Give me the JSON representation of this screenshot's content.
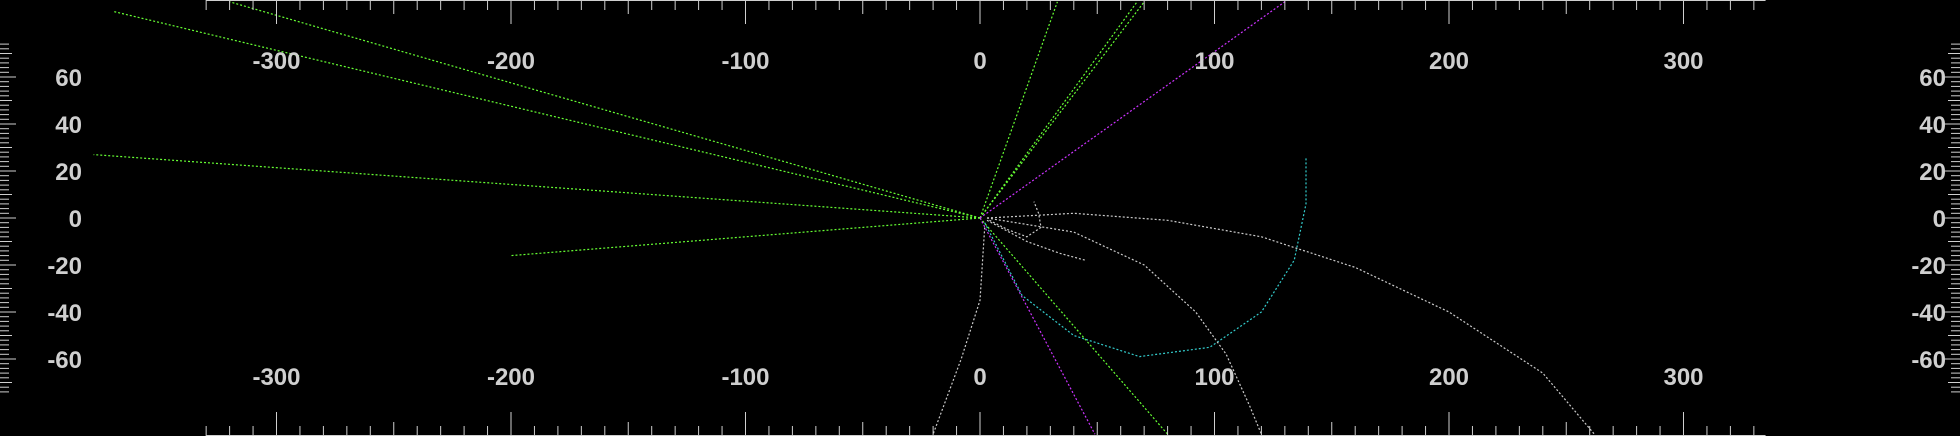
{
  "display": {
    "background_color": "#000000",
    "scale_color": "#cfcfcf"
  },
  "x_axis": {
    "tick_labels": [
      "-300",
      "-200",
      "-100",
      "0",
      "100",
      "200",
      "300"
    ],
    "tick_values": [
      -300,
      -200,
      -100,
      0,
      100,
      200,
      300
    ],
    "minor_step": 10,
    "range": [
      -330,
      335
    ]
  },
  "y_axis": {
    "tick_labels": [
      "60",
      "40",
      "20",
      "0",
      "-20",
      "-40",
      "-60"
    ],
    "tick_values": [
      60,
      40,
      20,
      0,
      -20,
      -40,
      -60
    ],
    "minor_step": 2,
    "range": [
      -75,
      75
    ]
  },
  "tracks": [
    {
      "color": "#66ff33",
      "points": [
        [
          0,
          0
        ],
        [
          -370,
          88
        ]
      ]
    },
    {
      "color": "#66ff33",
      "points": [
        [
          0,
          0
        ],
        [
          -320,
          92
        ]
      ]
    },
    {
      "color": "#66ff33",
      "points": [
        [
          0,
          0
        ],
        [
          -378,
          27
        ]
      ]
    },
    {
      "color": "#66ff33",
      "points": [
        [
          0,
          0
        ],
        [
          -200,
          -16
        ]
      ]
    },
    {
      "color": "#66ff33",
      "points": [
        [
          0,
          0
        ],
        [
          33,
          92
        ]
      ]
    },
    {
      "color": "#66ff33",
      "points": [
        [
          0,
          0
        ],
        [
          70,
          92
        ]
      ]
    },
    {
      "color": "#66ff33",
      "points": [
        [
          0,
          0
        ],
        [
          67,
          92
        ]
      ]
    },
    {
      "color": "#66ff33",
      "points": [
        [
          0,
          0
        ],
        [
          80,
          -92
        ]
      ]
    },
    {
      "color": "#cc33ff",
      "points": [
        [
          0,
          0
        ],
        [
          130,
          92
        ]
      ]
    },
    {
      "color": "#cc33ff",
      "points": [
        [
          0,
          0
        ],
        [
          49,
          -92
        ]
      ]
    },
    {
      "color": "#33cccc",
      "points": [
        [
          2,
          -2
        ],
        [
          18,
          -33
        ],
        [
          40,
          -50
        ],
        [
          68,
          -59
        ],
        [
          98,
          -55
        ],
        [
          120,
          -40
        ],
        [
          134,
          -18
        ],
        [
          139,
          6
        ],
        [
          139,
          26
        ]
      ]
    },
    {
      "color": "#cccccc",
      "points": [
        [
          3,
          0
        ],
        [
          40,
          2
        ],
        [
          80,
          -1
        ],
        [
          120,
          -8
        ],
        [
          160,
          -21
        ],
        [
          200,
          -40
        ],
        [
          240,
          -66
        ],
        [
          262,
          -92
        ]
      ]
    },
    {
      "color": "#cccccc",
      "points": [
        [
          3,
          0
        ],
        [
          40,
          -6
        ],
        [
          70,
          -20
        ],
        [
          92,
          -40
        ],
        [
          105,
          -58
        ],
        [
          115,
          -80
        ],
        [
          120,
          -92
        ]
      ]
    },
    {
      "color": "#cccccc",
      "points": [
        [
          2,
          -4
        ],
        [
          0,
          -35
        ],
        [
          -8,
          -60
        ],
        [
          -20,
          -92
        ]
      ]
    },
    {
      "color": "#cccccc",
      "points": [
        [
          3,
          -1
        ],
        [
          20,
          -10
        ],
        [
          34,
          -15
        ],
        [
          45,
          -18
        ]
      ]
    },
    {
      "color": "#cccccc",
      "points": [
        [
          4,
          -1
        ],
        [
          12,
          -5
        ],
        [
          20,
          -8
        ],
        [
          26,
          -4
        ],
        [
          25,
          2
        ],
        [
          23,
          7
        ]
      ]
    }
  ]
}
